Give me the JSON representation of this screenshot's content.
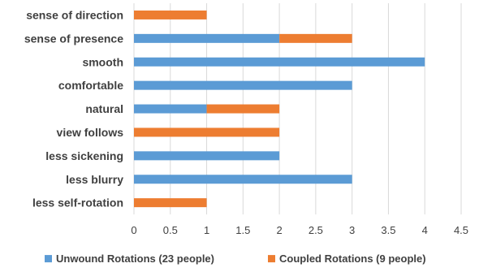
{
  "chart_data": {
    "type": "bar",
    "orientation": "horizontal",
    "stacked": true,
    "title": "",
    "xlabel": "",
    "ylabel": "",
    "categories": [
      "sense of direction",
      "sense of presence",
      "smooth",
      "comfortable",
      "natural",
      "view follows",
      "less sickening",
      "less blurry",
      "less self-rotation"
    ],
    "series": [
      {
        "name": "Unwound Rotations (23 people)",
        "color": "#5b9bd5",
        "values": [
          0,
          2,
          4,
          3,
          1,
          0,
          2,
          3,
          0
        ]
      },
      {
        "name": "Coupled Rotations (9 people)",
        "color": "#ed7d31",
        "values": [
          1,
          1,
          0,
          0,
          1,
          2,
          0,
          0,
          1
        ]
      }
    ],
    "xlim": [
      0,
      4.5
    ],
    "xticks": [
      "0",
      "0.5",
      "1",
      "1.5",
      "2",
      "2.5",
      "3",
      "3.5",
      "4",
      "4.5"
    ],
    "grid": true,
    "legend_position": "bottom"
  }
}
